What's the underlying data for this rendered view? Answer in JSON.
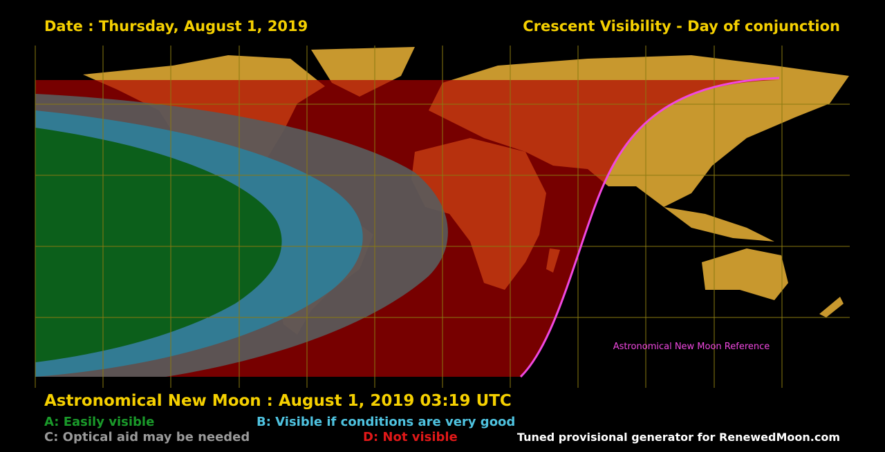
{
  "header": {
    "date": "Date : Thursday, August 1, 2019",
    "title": "Crescent Visibility - Day of conjunction"
  },
  "map": {
    "annotation": "Astronomical New Moon Reference"
  },
  "footer": {
    "conjunction": "Astronomical New Moon : August 1, 2019 03:19 UTC",
    "credit": "Tuned provisional generator for RenewedMoon.com"
  },
  "legend": {
    "items": [
      {
        "label": "A: Easily visible"
      },
      {
        "label": "B: Visible if conditions are very good"
      },
      {
        "label": "C: Optical aid may be needed"
      },
      {
        "label": "D: Not visible"
      }
    ]
  }
}
